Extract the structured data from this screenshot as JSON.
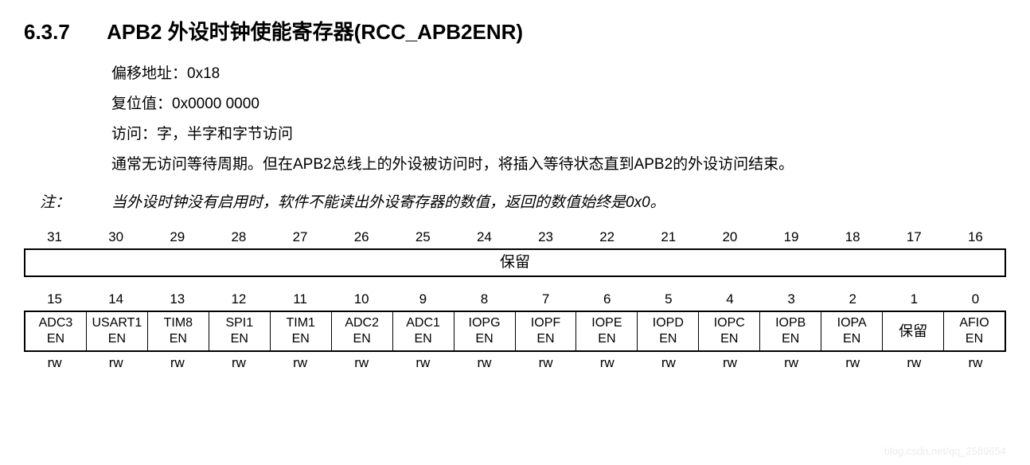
{
  "section_number": "6.3.7",
  "section_title": "APB2 外设时钟使能寄存器(RCC_APB2ENR)",
  "info": {
    "offset": "偏移地址：0x18",
    "reset": "复位值：0x0000 0000",
    "access": "访问：字，半字和字节访问",
    "desc": "通常无访问等待周期。但在APB2总线上的外设被访问时，将插入等待状态直到APB2的外设访问结束。"
  },
  "note_label": "注：",
  "note_text": "当外设时钟没有启用时，软件不能读出外设寄存器的数值，返回的数值始终是0x0。",
  "bits_high": [
    "31",
    "30",
    "29",
    "28",
    "27",
    "26",
    "25",
    "24",
    "23",
    "22",
    "21",
    "20",
    "19",
    "18",
    "17",
    "16"
  ],
  "reserved_label": "保留",
  "bits_low": [
    "15",
    "14",
    "13",
    "12",
    "11",
    "10",
    "9",
    "8",
    "7",
    "6",
    "5",
    "4",
    "3",
    "2",
    "1",
    "0"
  ],
  "fields_low": [
    {
      "l1": "ADC3",
      "l2": "EN",
      "acc": "rw"
    },
    {
      "l1": "USART1",
      "l2": "EN",
      "acc": "rw"
    },
    {
      "l1": "TIM8",
      "l2": "EN",
      "acc": "rw"
    },
    {
      "l1": "SPI1",
      "l2": "EN",
      "acc": "rw"
    },
    {
      "l1": "TIM1",
      "l2": "EN",
      "acc": "rw"
    },
    {
      "l1": "ADC2",
      "l2": "EN",
      "acc": "rw"
    },
    {
      "l1": "ADC1",
      "l2": "EN",
      "acc": "rw"
    },
    {
      "l1": "IOPG",
      "l2": "EN",
      "acc": "rw"
    },
    {
      "l1": "IOPF",
      "l2": "EN",
      "acc": "rw"
    },
    {
      "l1": "IOPE",
      "l2": "EN",
      "acc": "rw"
    },
    {
      "l1": "IOPD",
      "l2": "EN",
      "acc": "rw"
    },
    {
      "l1": "IOPC",
      "l2": "EN",
      "acc": "rw"
    },
    {
      "l1": "IOPB",
      "l2": "EN",
      "acc": "rw"
    },
    {
      "l1": "IOPA",
      "l2": "EN",
      "acc": "rw"
    },
    {
      "l1": "保留",
      "l2": "",
      "acc": "rw"
    },
    {
      "l1": "AFIO",
      "l2": "EN",
      "acc": "rw"
    }
  ],
  "watermark": "blog.csdn.net/qq_2589654",
  "colors": {
    "text": "#000000",
    "bg": "#ffffff",
    "border": "#000000"
  }
}
